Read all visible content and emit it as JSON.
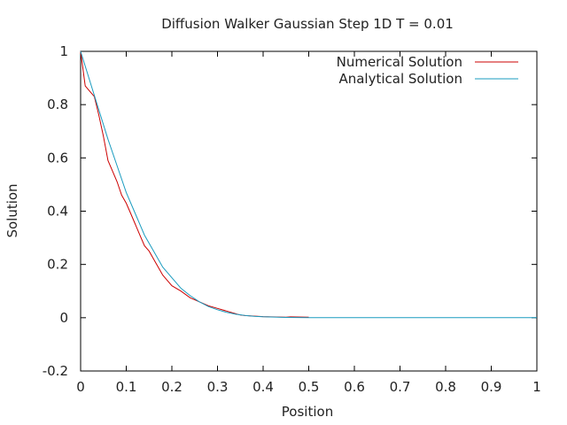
{
  "chart_data": {
    "type": "line",
    "title": "Diffusion Walker Gaussian Step 1D T = 0.01",
    "xlabel": "Position",
    "ylabel": "Solution",
    "xlim": [
      0,
      1
    ],
    "ylim": [
      -0.2,
      1
    ],
    "xticks": [
      "0",
      "0.1",
      "0.2",
      "0.3",
      "0.4",
      "0.5",
      "0.6",
      "0.7",
      "0.8",
      "0.9",
      "1"
    ],
    "yticks": [
      "-0.2",
      "0",
      "0.2",
      "0.4",
      "0.6",
      "0.8",
      "1"
    ],
    "grid": false,
    "legend_position": "top-right",
    "series": [
      {
        "name": "Numerical Solution",
        "color": "#cc0000",
        "x": [
          0,
          0.01,
          0.02,
          0.03,
          0.04,
          0.05,
          0.06,
          0.07,
          0.08,
          0.09,
          0.1,
          0.11,
          0.12,
          0.13,
          0.14,
          0.15,
          0.16,
          0.17,
          0.18,
          0.19,
          0.2,
          0.22,
          0.24,
          0.26,
          0.28,
          0.3,
          0.32,
          0.34,
          0.35,
          0.36,
          0.4,
          0.45,
          0.46,
          0.5
        ],
        "y": [
          1.0,
          0.87,
          0.85,
          0.83,
          0.76,
          0.68,
          0.59,
          0.55,
          0.51,
          0.46,
          0.43,
          0.39,
          0.35,
          0.31,
          0.27,
          0.25,
          0.22,
          0.19,
          0.16,
          0.14,
          0.12,
          0.1,
          0.075,
          0.06,
          0.045,
          0.035,
          0.025,
          0.015,
          0.01,
          0.008,
          0.004,
          0.002,
          0.003,
          0.002
        ]
      },
      {
        "name": "Analytical Solution",
        "color": "#1a9bbf",
        "x": [
          0,
          0.02,
          0.04,
          0.06,
          0.08,
          0.1,
          0.12,
          0.14,
          0.16,
          0.18,
          0.2,
          0.22,
          0.24,
          0.26,
          0.28,
          0.3,
          0.32,
          0.34,
          0.36,
          0.38,
          0.4,
          0.45,
          0.5,
          0.6,
          0.7,
          0.8,
          0.9,
          1.0
        ],
        "y": [
          1.0,
          0.89,
          0.78,
          0.67,
          0.57,
          0.47,
          0.39,
          0.31,
          0.25,
          0.19,
          0.15,
          0.11,
          0.083,
          0.06,
          0.042,
          0.03,
          0.02,
          0.013,
          0.0085,
          0.0054,
          0.0034,
          0.001,
          0.0003,
          0,
          0,
          0,
          0,
          0
        ]
      }
    ]
  }
}
